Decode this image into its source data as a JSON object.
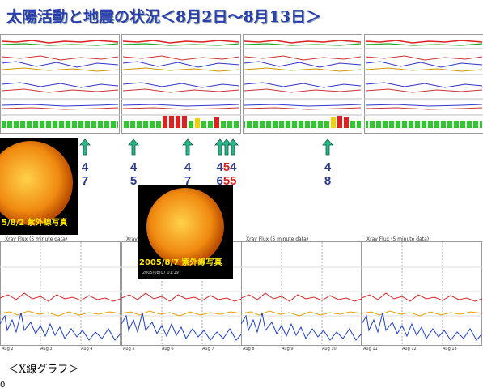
{
  "title": "太陽活動と地震の状況＜8月2日～8月13日＞",
  "arrow_labels": [
    {
      "top": [
        "4"
      ],
      "bottom": [
        "7"
      ]
    },
    {
      "top": [
        "4"
      ],
      "bottom": [
        "5"
      ]
    },
    {
      "top": [
        "4"
      ],
      "bottom": [
        "7"
      ]
    },
    {
      "top": [
        "4",
        "5",
        "4"
      ],
      "bottom": [
        "6",
        "5",
        "5"
      ]
    },
    {
      "top": [
        "4"
      ],
      "bottom": [
        "8"
      ]
    }
  ],
  "photos": [
    {
      "caption": "5/8/2 紫外線写真"
    },
    {
      "caption": "2005/8/7 紫外線写真",
      "stamp": "2005/08/07 01:19"
    }
  ],
  "xray_panels": [
    {
      "title": "Xray Flux (5 minute data)",
      "days": [
        "Aug 2",
        "Aug 3",
        "Aug 4"
      ]
    },
    {
      "title": "Xray Flux (5 minute data)",
      "days": [
        "Aug 5",
        "Aug 6",
        "Aug 7"
      ]
    },
    {
      "title": "Xray Flux (5 minute data)",
      "days": [
        "Aug 8",
        "Aug 9",
        "Aug 10"
      ]
    },
    {
      "title": "Xray Flux (5 minute data)",
      "days": [
        "Aug 11",
        "Aug 12",
        "Aug 13"
      ]
    }
  ],
  "caption": "＜X線グラフ＞",
  "page_number": "0"
}
